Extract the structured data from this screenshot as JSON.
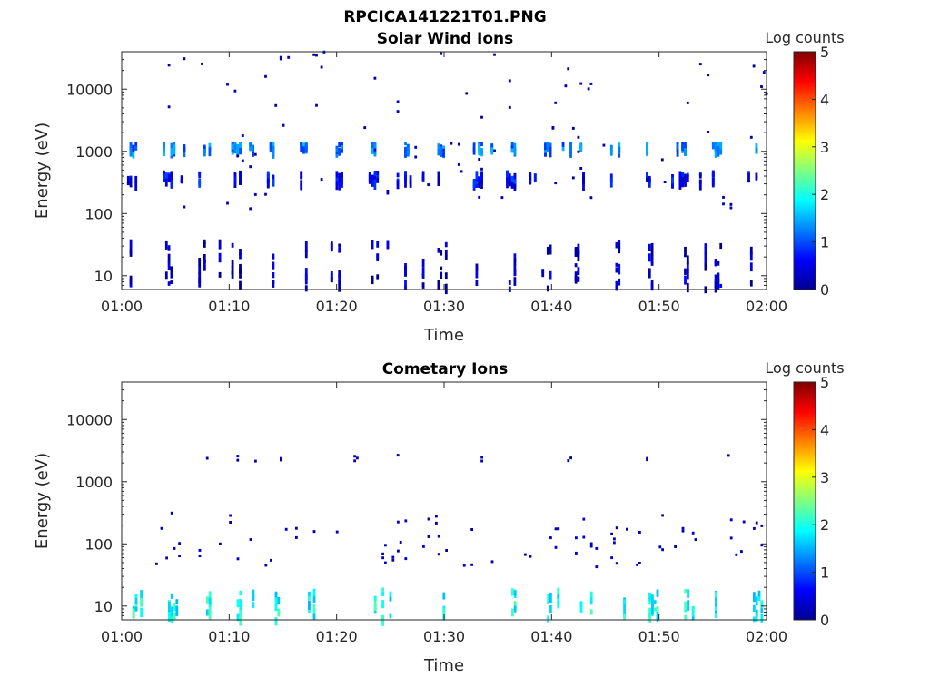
{
  "figure_title": "RPCICA141221T01.PNG",
  "colorbar_label": "Log counts",
  "colorbar_ticks": [
    "0",
    "1",
    "2",
    "3",
    "4",
    "5"
  ],
  "colorbar_range": [
    0,
    5
  ],
  "colormap": [
    "#00008f",
    "#0000ff",
    "#0080ff",
    "#00ffff",
    "#80ff80",
    "#ffff00",
    "#ff8000",
    "#ff0000",
    "#800000"
  ],
  "chart_data": [
    {
      "type": "heatmap",
      "title": "Solar Wind Ions",
      "xlabel": "Time",
      "ylabel": "Energy (eV)",
      "x_ticks": [
        "01:00",
        "01:10",
        "01:20",
        "01:30",
        "01:40",
        "01:50",
        "02:00"
      ],
      "x_range_minutes": [
        0,
        60
      ],
      "y_ticks": [
        "10",
        "100",
        "1000",
        "10000"
      ],
      "y_scale": "log",
      "y_range": [
        6,
        40000
      ],
      "z_label": "Log counts",
      "z_range": [
        0,
        5
      ],
      "features": [
        {
          "x_start_min": 0.5,
          "x_end_min": 60,
          "energy_eV": [
            6,
            35
          ],
          "log_counts": 0.3,
          "pattern": "periodic columns, ~3.2 min period"
        },
        {
          "x_start_min": 0.5,
          "x_end_min": 60,
          "energy_eV": [
            300,
            450
          ],
          "log_counts": 0.6,
          "pattern": "periodic clusters"
        },
        {
          "x_start_min": 0.5,
          "x_end_min": 60,
          "energy_eV": [
            1000,
            1300
          ],
          "log_counts": 1.2,
          "pattern": "periodic peaks, ~3.2 min period"
        },
        {
          "x_start_min": 0.5,
          "x_end_min": 60,
          "energy_eV": [
            100,
            40000
          ],
          "log_counts": 0.2,
          "pattern": "scattered"
        }
      ]
    },
    {
      "type": "heatmap",
      "title": "Cometary Ions",
      "xlabel": "Time",
      "ylabel": "Energy (eV)",
      "x_ticks": [
        "01:00",
        "01:10",
        "01:20",
        "01:30",
        "01:40",
        "01:50",
        "02:00"
      ],
      "x_range_minutes": [
        0,
        60
      ],
      "y_ticks": [
        "10",
        "100",
        "1000",
        "10000"
      ],
      "y_scale": "log",
      "y_range": [
        6,
        40000
      ],
      "z_label": "Log counts",
      "z_range": [
        0,
        5
      ],
      "features": [
        {
          "x_start_min": 1,
          "x_end_min": 60,
          "energy_eV": [
            6,
            18
          ],
          "log_counts": 1.9,
          "pattern": "periodic columns, ~3.2 min period"
        },
        {
          "x_start_min": 1,
          "x_end_min": 60,
          "energy_eV": [
            40,
            300
          ],
          "log_counts": 0.3,
          "pattern": "scattered"
        },
        {
          "x_start_min": 5,
          "x_end_min": 60,
          "energy_eV": [
            2000,
            2600
          ],
          "log_counts": 0.2,
          "pattern": "sparse dots"
        }
      ]
    }
  ]
}
